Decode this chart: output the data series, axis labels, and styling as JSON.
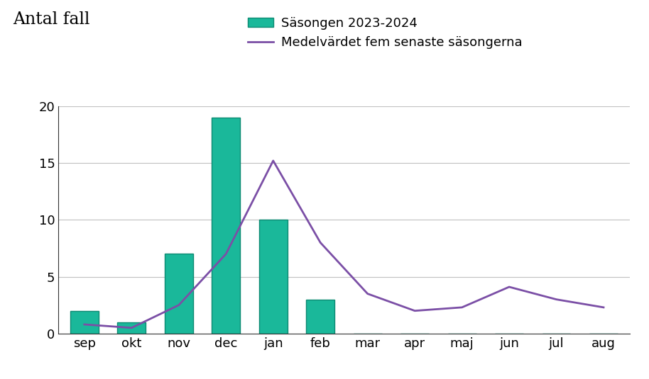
{
  "months": [
    "sep",
    "okt",
    "nov",
    "dec",
    "jan",
    "feb",
    "mar",
    "apr",
    "maj",
    "jun",
    "jul",
    "aug"
  ],
  "bar_values": [
    2,
    1,
    7,
    19,
    10,
    3,
    0,
    0,
    0,
    0,
    0,
    0
  ],
  "line_values": [
    0.8,
    0.5,
    2.5,
    7.0,
    15.2,
    8.0,
    3.5,
    2.0,
    2.3,
    4.1,
    3.0,
    2.3
  ],
  "bar_color": "#1ab89a",
  "bar_edgecolor": "#0d8a72",
  "line_color": "#7B4FA6",
  "ylabel_text": "Antal fall",
  "legend_bar": "Säsongen 2023-2024",
  "legend_line": "Medelvärdet fem senaste säsongerna",
  "ylim": [
    0,
    20
  ],
  "yticks": [
    0,
    5,
    10,
    15,
    20
  ],
  "background_color": "#ffffff",
  "grid_color": "#c0c0c0"
}
